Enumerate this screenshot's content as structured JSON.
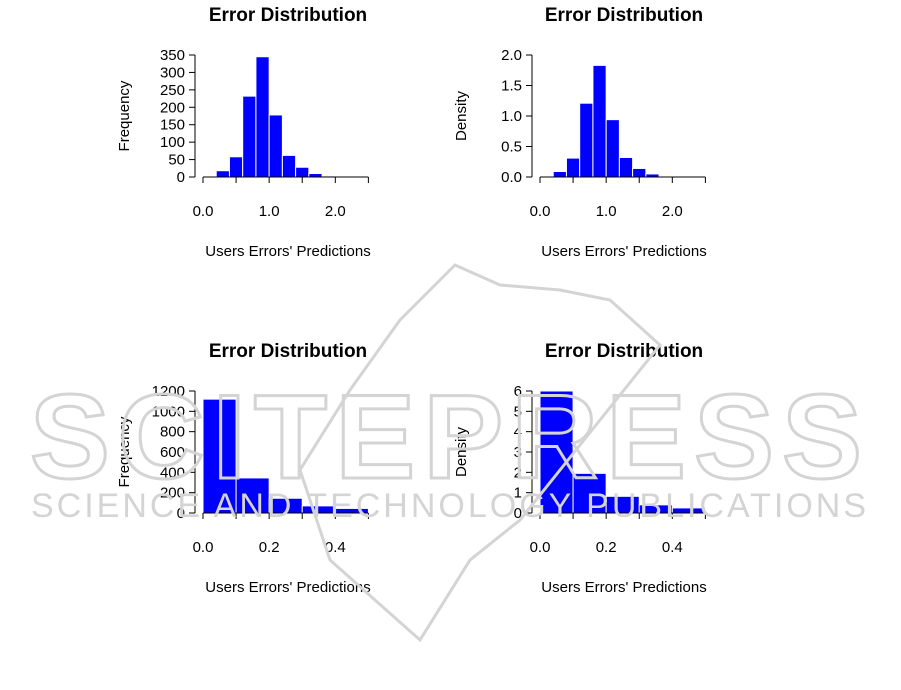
{
  "colors": {
    "bar_fill": "#0000ff",
    "bar_border": "#ffffff",
    "watermark": "#d4d4d4"
  },
  "watermark": {
    "big_text": "SCITEPRESS",
    "small_text": "SCIENCE AND TECHNOLOGY PUBLICATIONS"
  },
  "chart_data": [
    {
      "type": "bar",
      "title": "Error Distribution",
      "xlabel": "Users Errors' Predictions",
      "ylabel": "Frequency",
      "bin_edges": [
        0.2,
        0.4,
        0.6,
        0.8,
        1.0,
        1.2,
        1.4,
        1.6,
        1.8,
        2.0,
        2.2
      ],
      "values": [
        18,
        58,
        232,
        345,
        178,
        62,
        28,
        10,
        3,
        1
      ],
      "xlim": [
        0,
        2.6
      ],
      "ylim": [
        0,
        350
      ],
      "x_ticks": [
        0,
        0.5,
        1,
        1.5,
        2,
        2.5
      ],
      "x_tick_labels": [
        "0.0",
        "",
        "1.0",
        "",
        "2.0",
        ""
      ],
      "y_ticks": [
        0,
        50,
        100,
        150,
        200,
        250,
        300,
        350
      ],
      "y_tick_labels": [
        "0",
        "50",
        "100",
        "150",
        "200",
        "250",
        "300",
        "350"
      ]
    },
    {
      "type": "bar",
      "title": "Error Distribution",
      "xlabel": "Users Errors' Predictions",
      "ylabel": "Density",
      "bin_edges": [
        0.2,
        0.4,
        0.6,
        0.8,
        1.0,
        1.2,
        1.4,
        1.6,
        1.8,
        2.0,
        2.2
      ],
      "values": [
        0.09,
        0.31,
        1.21,
        1.83,
        0.94,
        0.32,
        0.14,
        0.05,
        0.015,
        0.005
      ],
      "xlim": [
        0,
        2.6
      ],
      "ylim": [
        0,
        2.0
      ],
      "x_ticks": [
        0,
        0.5,
        1,
        1.5,
        2,
        2.5
      ],
      "x_tick_labels": [
        "0.0",
        "",
        "1.0",
        "",
        "2.0",
        ""
      ],
      "y_ticks": [
        0,
        0.5,
        1,
        1.5,
        2
      ],
      "y_tick_labels": [
        "0.0",
        "0.5",
        "1.0",
        "1.5",
        "2.0"
      ]
    },
    {
      "type": "bar",
      "title": "Error Distribution",
      "xlabel": "Users Errors' Predictions",
      "ylabel": "Frequency",
      "bin_edges": [
        0.0,
        0.1,
        0.2,
        0.3,
        0.4,
        0.5
      ],
      "values": [
        1120,
        345,
        145,
        70,
        45
      ],
      "xlim": [
        0,
        0.52
      ],
      "ylim": [
        0,
        1200
      ],
      "x_ticks": [
        0,
        0.1,
        0.2,
        0.3,
        0.4,
        0.5
      ],
      "x_tick_labels": [
        "0.0",
        "",
        "0.2",
        "",
        "0.4",
        ""
      ],
      "y_ticks": [
        0,
        200,
        400,
        600,
        800,
        1000,
        1200
      ],
      "y_tick_labels": [
        "0",
        "200",
        "400",
        "600",
        "800",
        "1000",
        "1200"
      ]
    },
    {
      "type": "bar",
      "title": "Error Distribution",
      "xlabel": "Users Errors' Predictions",
      "ylabel": "Density",
      "bin_edges": [
        0.0,
        0.1,
        0.2,
        0.3,
        0.4,
        0.5
      ],
      "values": [
        6.0,
        1.95,
        0.82,
        0.4,
        0.25
      ],
      "xlim": [
        0,
        0.52
      ],
      "ylim": [
        0,
        6
      ],
      "x_ticks": [
        0,
        0.1,
        0.2,
        0.3,
        0.4,
        0.5
      ],
      "x_tick_labels": [
        "0.0",
        "",
        "0.2",
        "",
        "0.4",
        ""
      ],
      "y_ticks": [
        0,
        1,
        2,
        3,
        4,
        5,
        6
      ],
      "y_tick_labels": [
        "0",
        "1",
        "2",
        "3",
        "4",
        "5",
        "6"
      ]
    }
  ]
}
